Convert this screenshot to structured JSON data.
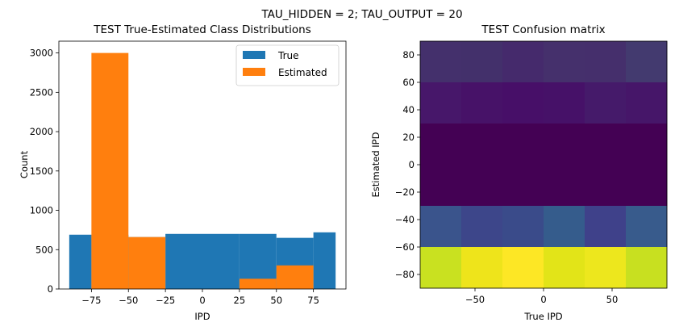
{
  "suptitle": "TAU_HIDDEN = 2; TAU_OUTPUT = 20",
  "chart_data": [
    {
      "type": "bar",
      "subtype": "histogram",
      "title": "TEST True-Estimated Class Distributions",
      "xlabel": "IPD",
      "ylabel": "Count",
      "xlim": [
        -97,
        97
      ],
      "ylim": [
        0,
        3150
      ],
      "xticks": [
        -75,
        -50,
        -25,
        0,
        25,
        50,
        75
      ],
      "xtick_labels": [
        "−75",
        "−50",
        "−25",
        "0",
        "25",
        "50",
        "75"
      ],
      "yticks": [
        0,
        500,
        1000,
        1500,
        2000,
        2500,
        3000
      ],
      "ytick_labels": [
        "0",
        "500",
        "1000",
        "1500",
        "2000",
        "2500",
        "3000"
      ],
      "legend_position": "top-right",
      "series": [
        {
          "name": "True",
          "color": "#1f77b4",
          "bins": [
            [
              -90,
              -75,
              690
            ],
            [
              -75,
              -50,
              690
            ],
            [
              -50,
              -25,
              660
            ],
            [
              -25,
              0,
              700
            ],
            [
              0,
              25,
              700
            ],
            [
              25,
              50,
              700
            ],
            [
              50,
              75,
              650
            ],
            [
              75,
              90,
              720
            ]
          ]
        },
        {
          "name": "Estimated",
          "color": "#ff7f0e",
          "bins": [
            [
              -75,
              -50,
              3000
            ],
            [
              -50,
              -25,
              660
            ],
            [
              25,
              50,
              130
            ],
            [
              50,
              75,
              300
            ]
          ]
        }
      ]
    },
    {
      "type": "heatmap",
      "title": "TEST Confusion matrix",
      "xlabel": "True IPD",
      "ylabel": "Estimated IPD",
      "xlim": [
        -90,
        90
      ],
      "ylim": [
        -90,
        90
      ],
      "xticks": [
        -50,
        0,
        50
      ],
      "xtick_labels": [
        "−50",
        "0",
        "50"
      ],
      "yticks": [
        80,
        60,
        40,
        20,
        0,
        -20,
        -40,
        -60,
        -80
      ],
      "ytick_labels": [
        "80",
        "60",
        "40",
        "20",
        "0",
        "−20",
        "−40",
        "−60",
        "−80"
      ],
      "x_edges": [
        -90,
        -60,
        -30,
        0,
        30,
        60,
        90
      ],
      "y_edges": [
        90,
        60,
        30,
        -30,
        -60,
        -90
      ],
      "cells": [
        [
          "#44306c",
          "#43306b",
          "#452a6c",
          "#45306c",
          "#452f6c",
          "#433a6f"
        ],
        [
          "#47176a",
          "#471268",
          "#470f68",
          "#461168",
          "#451a6a",
          "#461669"
        ],
        [
          "#440154",
          "#440154",
          "#440154",
          "#440154",
          "#440154",
          "#440154"
        ],
        [
          "#3a548c",
          "#3d468a",
          "#3a4b8a",
          "#355c8c",
          "#3f418a",
          "#385b8c"
        ],
        [
          "#c9e120",
          "#eee41b",
          "#fde725",
          "#e2e418",
          "#ede71d",
          "#c8e020"
        ]
      ]
    }
  ]
}
